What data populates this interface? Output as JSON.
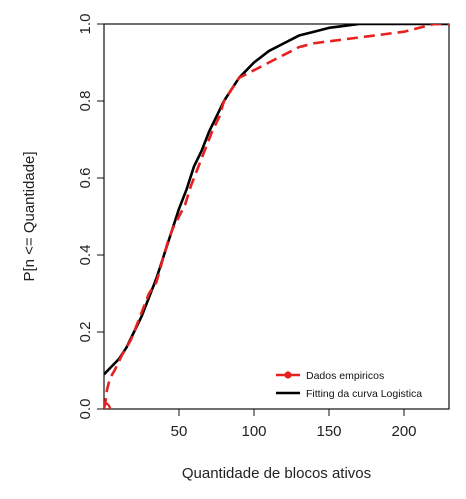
{
  "chart_data": {
    "type": "line",
    "title": "",
    "xlabel": "Quantidade de blocos ativos",
    "ylabel": "P[n <= Quantidade]",
    "xlim": [
      0,
      230
    ],
    "ylim": [
      0,
      1
    ],
    "x_ticks": [
      50,
      100,
      150,
      200
    ],
    "x_tick_labels": [
      "50",
      "100",
      "150",
      "200"
    ],
    "y_ticks": [
      0,
      0.2,
      0.4,
      0.6,
      0.8,
      1.0
    ],
    "y_tick_labels": [
      "0.0",
      "0.2",
      "0.4",
      "0.6",
      "0.8",
      "1.0"
    ],
    "grid": false,
    "legend_position": "bottom-right",
    "series": [
      {
        "name": "Dados empiricos",
        "color": "#e8201f",
        "style": "dashed",
        "marker": "circle",
        "points": [
          [
            0,
            0.0
          ],
          [
            1,
            0.02
          ],
          [
            2,
            0.05
          ],
          [
            4,
            0.08
          ],
          [
            7,
            0.1
          ],
          [
            12,
            0.14
          ],
          [
            18,
            0.18
          ],
          [
            24,
            0.24
          ],
          [
            30,
            0.3
          ],
          [
            35,
            0.33
          ],
          [
            40,
            0.4
          ],
          [
            43,
            0.44
          ],
          [
            46,
            0.47
          ],
          [
            50,
            0.5
          ],
          [
            54,
            0.53
          ],
          [
            58,
            0.58
          ],
          [
            62,
            0.62
          ],
          [
            67,
            0.67
          ],
          [
            72,
            0.72
          ],
          [
            77,
            0.76
          ],
          [
            80,
            0.8
          ],
          [
            85,
            0.83
          ],
          [
            90,
            0.86
          ],
          [
            95,
            0.87
          ],
          [
            100,
            0.88
          ],
          [
            105,
            0.89
          ],
          [
            110,
            0.9
          ],
          [
            115,
            0.91
          ],
          [
            120,
            0.92
          ],
          [
            125,
            0.93
          ],
          [
            130,
            0.94
          ],
          [
            140,
            0.95
          ],
          [
            150,
            0.955
          ],
          [
            160,
            0.96
          ],
          [
            170,
            0.965
          ],
          [
            180,
            0.97
          ],
          [
            190,
            0.975
          ],
          [
            200,
            0.98
          ],
          [
            210,
            0.99
          ],
          [
            220,
            1.0
          ],
          [
            230,
            1.0
          ]
        ]
      },
      {
        "name": "Fitting da curva Logistica",
        "color": "#000000",
        "style": "solid",
        "points": [
          [
            0,
            0.09
          ],
          [
            5,
            0.11
          ],
          [
            10,
            0.13
          ],
          [
            15,
            0.16
          ],
          [
            20,
            0.2
          ],
          [
            25,
            0.24
          ],
          [
            30,
            0.29
          ],
          [
            35,
            0.34
          ],
          [
            40,
            0.4
          ],
          [
            45,
            0.46
          ],
          [
            50,
            0.52
          ],
          [
            55,
            0.57
          ],
          [
            60,
            0.63
          ],
          [
            65,
            0.67
          ],
          [
            70,
            0.72
          ],
          [
            75,
            0.76
          ],
          [
            80,
            0.8
          ],
          [
            85,
            0.83
          ],
          [
            90,
            0.86
          ],
          [
            95,
            0.88
          ],
          [
            100,
            0.9
          ],
          [
            110,
            0.93
          ],
          [
            120,
            0.95
          ],
          [
            130,
            0.97
          ],
          [
            140,
            0.98
          ],
          [
            150,
            0.99
          ],
          [
            160,
            0.995
          ],
          [
            170,
            1.0
          ],
          [
            200,
            1.0
          ],
          [
            230,
            1.0
          ]
        ]
      }
    ]
  }
}
